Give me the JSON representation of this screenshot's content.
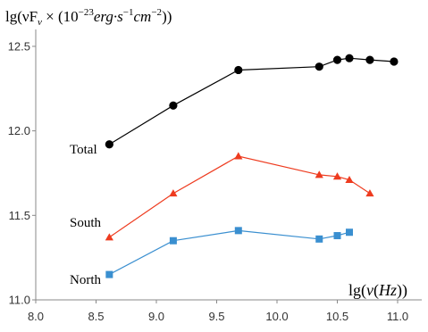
{
  "chart_data": {
    "type": "line",
    "ylabel": {
      "prefix": "lg(νF",
      "sub": "ν",
      "mid": " × (10",
      "sup1": "−23",
      "unit1": "erg·s",
      "sup2": "−1",
      "unit2": "cm",
      "sup3": "−2",
      "suffix": "))"
    },
    "xlabel": {
      "prefix": "lg(",
      "nu": "ν",
      "open": "(",
      "unit": "Hz",
      "suffix": "))"
    },
    "xlim": [
      8.0,
      11.2
    ],
    "ylim": [
      11.0,
      12.6
    ],
    "xticks": [
      "8.0",
      "8.5",
      "9.0",
      "9.5",
      "10.0",
      "10.5",
      "11.0"
    ],
    "yticks": [
      "11.0",
      "11.5",
      "12.0",
      "12.5"
    ],
    "grid": false,
    "series": [
      {
        "name": "Total",
        "color": "#000000",
        "marker": "circle",
        "x": [
          8.61,
          9.14,
          9.68,
          10.35,
          10.5,
          10.6,
          10.77,
          10.97
        ],
        "y": [
          11.92,
          12.15,
          12.36,
          12.38,
          12.42,
          12.43,
          12.42,
          12.41
        ]
      },
      {
        "name": "South",
        "color": "#ee3b1f",
        "marker": "triangle",
        "x": [
          8.61,
          9.14,
          9.68,
          10.35,
          10.5,
          10.6,
          10.77
        ],
        "y": [
          11.37,
          11.63,
          11.85,
          11.74,
          11.73,
          11.71,
          11.63
        ]
      },
      {
        "name": "North",
        "color": "#3a8fd0",
        "marker": "square",
        "x": [
          8.61,
          9.14,
          9.68,
          10.35,
          10.5,
          10.6
        ],
        "y": [
          11.15,
          11.35,
          11.41,
          11.36,
          11.38,
          11.4
        ]
      }
    ]
  }
}
